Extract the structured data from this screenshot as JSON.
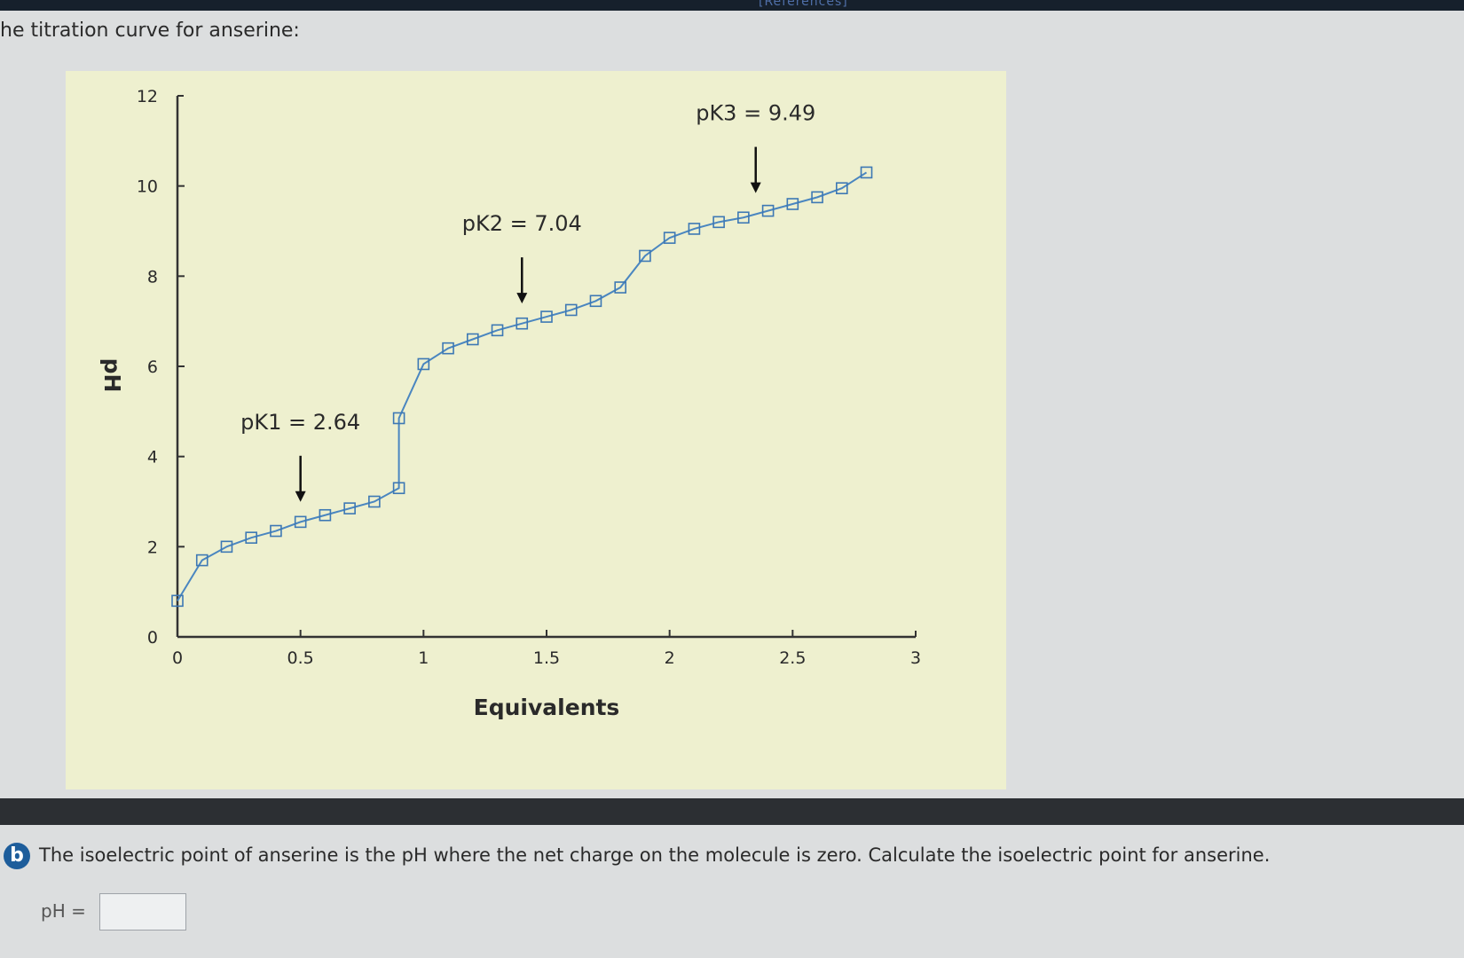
{
  "header": {
    "link_text": "[References]"
  },
  "intro_text": "he titration curve for anserine:",
  "chart_data": {
    "type": "line",
    "title": "",
    "xlabel": "Equivalents",
    "ylabel": "pH",
    "xlim": [
      0,
      3
    ],
    "ylim": [
      0,
      12
    ],
    "x_ticks": [
      "0",
      "0.5",
      "1",
      "1.5",
      "2",
      "2.5",
      "3"
    ],
    "y_ticks": [
      "0",
      "2",
      "4",
      "6",
      "8",
      "10",
      "12"
    ],
    "grid": false,
    "legend": false,
    "series": [
      {
        "marker": "square",
        "color": "#3d78b4",
        "x": [
          0.0,
          0.1,
          0.2,
          0.3,
          0.4,
          0.5,
          0.6,
          0.7,
          0.8,
          0.9,
          0.9,
          1.0,
          1.1,
          1.2,
          1.3,
          1.4,
          1.5,
          1.6,
          1.7,
          1.8,
          1.9,
          2.0,
          2.1,
          2.2,
          2.3,
          2.4,
          2.5,
          2.6,
          2.7,
          2.8
        ],
        "y": [
          0.8,
          1.7,
          2.0,
          2.2,
          2.35,
          2.55,
          2.7,
          2.85,
          3.0,
          3.3,
          4.85,
          6.05,
          6.4,
          6.6,
          6.8,
          6.95,
          7.1,
          7.25,
          7.45,
          7.75,
          8.45,
          8.85,
          9.05,
          9.2,
          9.3,
          9.45,
          9.6,
          9.75,
          9.95,
          10.3
        ]
      }
    ],
    "annotations": [
      {
        "text": "pK1 = 2.64",
        "x": 0.5,
        "y": 2.64
      },
      {
        "text": "pK2 = 7.04",
        "x": 1.4,
        "y": 7.04
      },
      {
        "text": "pK3 = 9.49",
        "x": 2.35,
        "y": 9.49
      }
    ]
  },
  "question": {
    "part_label": "b",
    "text": "The isoelectric point of anserine is the pH where the net charge on the molecule is zero. Calculate the isoelectric point for anserine.",
    "answer_label": "pH =",
    "answer_value": ""
  }
}
